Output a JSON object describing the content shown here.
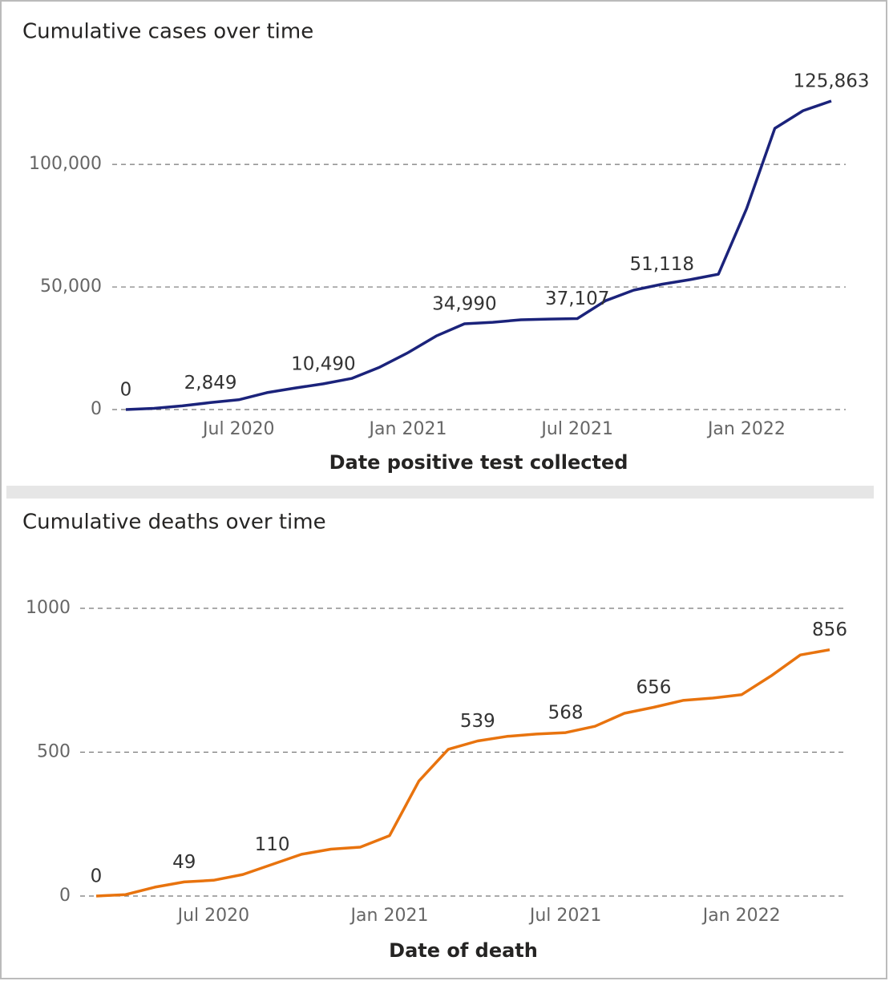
{
  "chart_data": [
    {
      "type": "line",
      "title": "Cumulative cases over time",
      "x_label": "Date positive test collected",
      "x": [
        "2020-03",
        "2020-04",
        "2020-05",
        "2020-06",
        "2020-07",
        "2020-08",
        "2020-09",
        "2020-10",
        "2020-11",
        "2020-12",
        "2021-01",
        "2021-02",
        "2021-03",
        "2021-04",
        "2021-05",
        "2021-06",
        "2021-07",
        "2021-08",
        "2021-09",
        "2021-10",
        "2021-11",
        "2021-12",
        "2022-01",
        "2022-02",
        "2022-03",
        "2022-04"
      ],
      "values": [
        0,
        500,
        1500,
        2849,
        4000,
        6900,
        8800,
        10490,
        12700,
        17300,
        23200,
        30000,
        34990,
        35600,
        36600,
        36900,
        37107,
        44400,
        48700,
        51118,
        53000,
        55200,
        82000,
        114700,
        121900,
        125863
      ],
      "value_labels": [
        "0",
        null,
        null,
        "2,849",
        null,
        null,
        null,
        "10,490",
        null,
        null,
        null,
        null,
        "34,990",
        null,
        null,
        null,
        "37,107",
        null,
        null,
        "51,118",
        null,
        null,
        null,
        null,
        null,
        "125,863"
      ],
      "color": "#1b237b",
      "xlim": [
        "2020-03",
        "2022-04"
      ],
      "xticks": [
        {
          "value": "2020-07",
          "label": "Jul 2020"
        },
        {
          "value": "2021-01",
          "label": "Jan 2021"
        },
        {
          "value": "2021-07",
          "label": "Jul 2021"
        },
        {
          "value": "2022-01",
          "label": "Jan 2022"
        }
      ],
      "ylim": [
        0,
        125863
      ],
      "yticks": [
        0,
        {
          "value": 50000,
          "label": "50,000"
        },
        {
          "value": 100000,
          "label": "100,000"
        }
      ],
      "grid": true
    },
    {
      "type": "line",
      "title": "Cumulative deaths over time",
      "x_label": "Date of death",
      "x": [
        "2020-03",
        "2020-04",
        "2020-05",
        "2020-06",
        "2020-07",
        "2020-08",
        "2020-09",
        "2020-10",
        "2020-11",
        "2020-12",
        "2021-01",
        "2021-02",
        "2021-03",
        "2021-04",
        "2021-05",
        "2021-06",
        "2021-07",
        "2021-08",
        "2021-09",
        "2021-10",
        "2021-11",
        "2021-12",
        "2022-01",
        "2022-02",
        "2022-03",
        "2022-04"
      ],
      "values": [
        0,
        5,
        31,
        49,
        55,
        75,
        110,
        145,
        163,
        170,
        210,
        400,
        510,
        539,
        555,
        563,
        568,
        590,
        635,
        656,
        680,
        688,
        700,
        765,
        838,
        856
      ],
      "value_labels": [
        "0",
        null,
        null,
        "49",
        null,
        null,
        "110",
        null,
        null,
        null,
        null,
        null,
        null,
        "539",
        null,
        null,
        "568",
        null,
        null,
        "656",
        null,
        null,
        null,
        null,
        null,
        "856"
      ],
      "color": "#e8730e",
      "xlim": [
        "2020-03",
        "2022-04"
      ],
      "xticks": [
        {
          "value": "2020-07",
          "label": "Jul 2020"
        },
        {
          "value": "2021-01",
          "label": "Jan 2021"
        },
        {
          "value": "2021-07",
          "label": "Jul 2021"
        },
        {
          "value": "2022-01",
          "label": "Jan 2022"
        }
      ],
      "ylim": [
        0,
        1000
      ],
      "yticks": [
        0,
        500,
        1000
      ],
      "grid": true
    }
  ]
}
